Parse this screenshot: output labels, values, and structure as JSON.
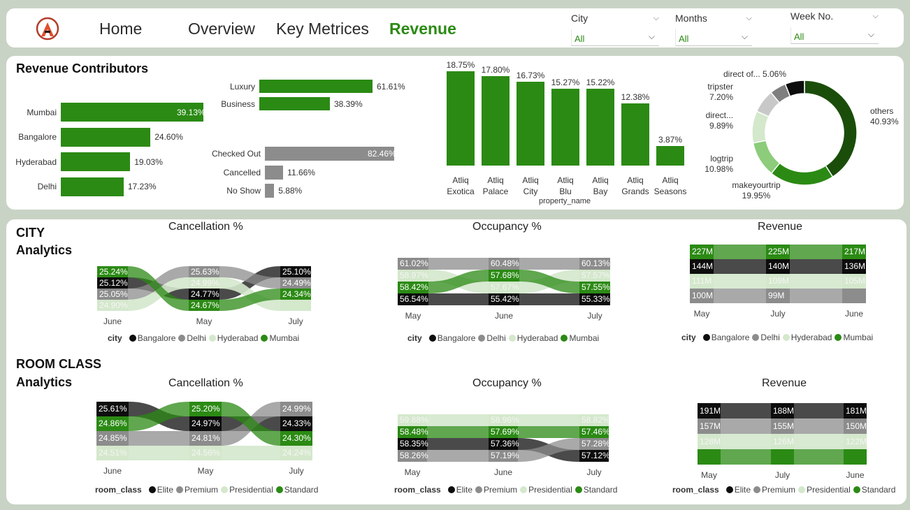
{
  "colors": {
    "green_dark": "#2b8a14",
    "green_mid": "#5aab44",
    "green_light": "#d4e8cc",
    "black": "#0d0d0d",
    "gray": "#8c8c8c",
    "dark_green": "#1a4d0a"
  },
  "nav": {
    "home": "Home",
    "overview": "Overview",
    "key_metrics": "Key Metrices",
    "revenue": "Revenue"
  },
  "slicers": {
    "city": {
      "title": "City",
      "value": "All"
    },
    "months": {
      "title": "Months",
      "value": "All"
    },
    "week": {
      "title": "Week No.",
      "value": "All"
    }
  },
  "contributors": {
    "title": "Revenue Contributors",
    "city": {
      "items": [
        {
          "label": "Mumbai",
          "value": 39.13,
          "text": "39.13%"
        },
        {
          "label": "Bangalore",
          "value": 24.6,
          "text": "24.60%"
        },
        {
          "label": "Hyderabad",
          "value": 19.03,
          "text": "19.03%"
        },
        {
          "label": "Delhi",
          "value": 17.23,
          "text": "17.23%"
        }
      ]
    },
    "category": {
      "items": [
        {
          "label": "Luxury",
          "value": 61.61,
          "text": "61.61%"
        },
        {
          "label": "Business",
          "value": 38.39,
          "text": "38.39%"
        }
      ]
    },
    "status": {
      "items": [
        {
          "label": "Checked Out",
          "value": 82.46,
          "text": "82.46%"
        },
        {
          "label": "Cancelled",
          "value": 11.66,
          "text": "11.66%"
        },
        {
          "label": "No Show",
          "value": 5.88,
          "text": "5.88%"
        }
      ]
    },
    "property": {
      "axis_label": "property_name",
      "items": [
        {
          "l1": "Atliq",
          "l2": "Exotica",
          "value": 18.75,
          "text": "18.75%"
        },
        {
          "l1": "Atliq",
          "l2": "Palace",
          "value": 17.8,
          "text": "17.80%"
        },
        {
          "l1": "Atliq",
          "l2": "City",
          "value": 16.73,
          "text": "16.73%"
        },
        {
          "l1": "Atliq",
          "l2": "Blu",
          "value": 15.27,
          "text": "15.27%"
        },
        {
          "l1": "Atliq",
          "l2": "Bay",
          "value": 15.22,
          "text": "15.22%"
        },
        {
          "l1": "Atliq",
          "l2": "Grands",
          "value": 12.38,
          "text": "12.38%"
        },
        {
          "l1": "Atliq",
          "l2": "Seasons",
          "value": 3.87,
          "text": "3.87%"
        }
      ]
    },
    "platform": {
      "items": [
        {
          "label": "others",
          "value": 40.93,
          "text": "40.93%",
          "color": "#1a4d0a"
        },
        {
          "label": "makeyourtrip",
          "value": 19.95,
          "text": "19.95%",
          "color": "#2b8a14"
        },
        {
          "label": "logtrip",
          "value": 10.98,
          "text": "10.98%",
          "color": "#8ccc7a"
        },
        {
          "label": "direct...",
          "value": 9.89,
          "text": "9.89%",
          "color": "#d4e8cc"
        },
        {
          "label": "tripster",
          "value": 7.2,
          "text": "7.20%",
          "color": "#c8c8c8"
        },
        {
          "label": "direct of...",
          "value": 5.06,
          "text": "5.06%",
          "color": "#7f7f7f"
        },
        {
          "label": "",
          "value": 5.99,
          "text": "",
          "color": "#0d0d0d"
        }
      ]
    }
  },
  "city_section": {
    "title_line1": "CITY",
    "title_line2": "Analytics",
    "legend_title": "city",
    "legend": [
      "Bangalore",
      "Delhi",
      "Hyderabad",
      "Mumbai"
    ],
    "cancellation": {
      "title": "Cancellation %",
      "columns": [
        "June",
        "May",
        "July"
      ],
      "cells": [
        [
          {
            "t": "25.24%",
            "c": "green"
          },
          {
            "t": "25.12%",
            "c": "black"
          },
          {
            "t": "25.05%",
            "c": "gray"
          },
          {
            "t": "24.90%",
            "c": "light"
          }
        ],
        [
          {
            "t": "25.63%",
            "c": "gray"
          },
          {
            "t": "24.99%",
            "c": "light"
          },
          {
            "t": "24.77%",
            "c": "black"
          },
          {
            "t": "24.67%",
            "c": "green"
          }
        ],
        [
          {
            "t": "25.10%",
            "c": "black"
          },
          {
            "t": "24.49%",
            "c": "gray"
          },
          {
            "t": "24.34%",
            "c": "green"
          },
          {
            "t": "",
            "c": "light"
          }
        ]
      ]
    },
    "occupancy": {
      "title": "Occupancy %",
      "columns": [
        "May",
        "June",
        "July"
      ],
      "cells": [
        [
          {
            "t": "61.02%",
            "c": "gray"
          },
          {
            "t": "58.97%",
            "c": "light"
          },
          {
            "t": "58.42%",
            "c": "green"
          },
          {
            "t": "56.54%",
            "c": "black"
          }
        ],
        [
          {
            "t": "60.48%",
            "c": "gray"
          },
          {
            "t": "57.68%",
            "c": "green"
          },
          {
            "t": "57.67%",
            "c": "light"
          },
          {
            "t": "55.42%",
            "c": "black"
          }
        ],
        [
          {
            "t": "60.13%",
            "c": "gray"
          },
          {
            "t": "57.57%",
            "c": "light"
          },
          {
            "t": "57.55%",
            "c": "green"
          },
          {
            "t": "55.33%",
            "c": "black"
          }
        ]
      ]
    },
    "revenue": {
      "title": "Revenue",
      "columns": [
        "May",
        "July",
        "June"
      ],
      "cells": [
        [
          {
            "t": "227M",
            "c": "green"
          },
          {
            "t": "144M",
            "c": "black"
          },
          {
            "t": "111M",
            "c": "light"
          },
          {
            "t": "100M",
            "c": "gray"
          }
        ],
        [
          {
            "t": "225M",
            "c": "green"
          },
          {
            "t": "140M",
            "c": "black"
          },
          {
            "t": "109M",
            "c": "light"
          },
          {
            "t": "99M",
            "c": "gray"
          }
        ],
        [
          {
            "t": "217M",
            "c": "green"
          },
          {
            "t": "136M",
            "c": "black"
          },
          {
            "t": "105M",
            "c": "light"
          },
          {
            "t": "",
            "c": "gray"
          }
        ]
      ]
    }
  },
  "room_section": {
    "title_line1": "ROOM CLASS",
    "title_line2": "Analytics",
    "legend_title": "room_class",
    "legend": [
      "Elite",
      "Premium",
      "Presidential",
      "Standard"
    ],
    "cancellation": {
      "title": "Cancellation %",
      "columns": [
        "June",
        "May",
        "July"
      ],
      "cells": [
        [
          {
            "t": "25.61%",
            "c": "black"
          },
          {
            "t": "24.86%",
            "c": "green"
          },
          {
            "t": "24.85%",
            "c": "gray"
          },
          {
            "t": "24.51%",
            "c": "light"
          }
        ],
        [
          {
            "t": "25.20%",
            "c": "green"
          },
          {
            "t": "24.97%",
            "c": "black"
          },
          {
            "t": "24.81%",
            "c": "gray"
          },
          {
            "t": "24.56%",
            "c": "light"
          }
        ],
        [
          {
            "t": "24.99%",
            "c": "gray"
          },
          {
            "t": "24.33%",
            "c": "black"
          },
          {
            "t": "24.30%",
            "c": "green"
          },
          {
            "t": "24.24%",
            "c": "light"
          }
        ]
      ]
    },
    "occupancy": {
      "title": "Occupancy %",
      "columns": [
        "May",
        "June",
        "July"
      ],
      "cells": [
        [
          {
            "t": "59.88%",
            "c": "light"
          },
          {
            "t": "58.48%",
            "c": "green"
          },
          {
            "t": "58.35%",
            "c": "black"
          },
          {
            "t": "58.26%",
            "c": "gray"
          }
        ],
        [
          {
            "t": "58.96%",
            "c": "light"
          },
          {
            "t": "57.69%",
            "c": "green"
          },
          {
            "t": "57.36%",
            "c": "black"
          },
          {
            "t": "57.19%",
            "c": "gray"
          }
        ],
        [
          {
            "t": "58.82%",
            "c": "light"
          },
          {
            "t": "57.46%",
            "c": "green"
          },
          {
            "t": "57.28%",
            "c": "gray"
          },
          {
            "t": "57.12%",
            "c": "black"
          }
        ]
      ]
    },
    "revenue": {
      "title": "Revenue",
      "columns": [
        "May",
        "July",
        "June"
      ],
      "cells": [
        [
          {
            "t": "191M",
            "c": "black"
          },
          {
            "t": "157M",
            "c": "gray"
          },
          {
            "t": "128M",
            "c": "light"
          },
          {
            "t": "",
            "c": "green"
          }
        ],
        [
          {
            "t": "188M",
            "c": "black"
          },
          {
            "t": "155M",
            "c": "gray"
          },
          {
            "t": "126M",
            "c": "light"
          },
          {
            "t": "",
            "c": "green"
          }
        ],
        [
          {
            "t": "181M",
            "c": "black"
          },
          {
            "t": "150M",
            "c": "gray"
          },
          {
            "t": "122M",
            "c": "light"
          },
          {
            "t": "",
            "c": "green"
          }
        ]
      ]
    }
  }
}
